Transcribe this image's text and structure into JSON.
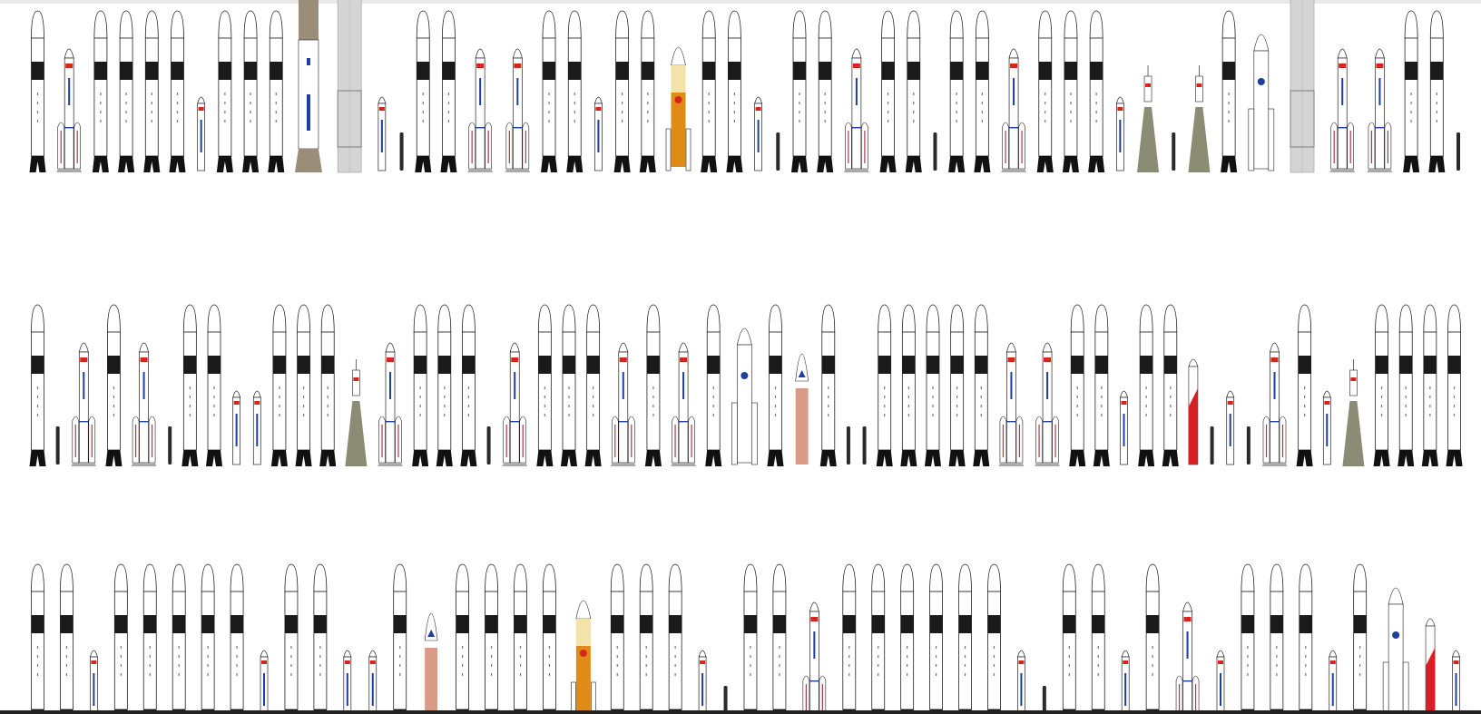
{
  "colors": {
    "background": "#ffffff",
    "rocket_body": "#ffffff",
    "rocket_outline": "#222222",
    "interstage": "#1a1a1a",
    "falcon_legs": "#111111",
    "china_flag": "#d8251c",
    "blue_stripe": "#1f3f9e",
    "booster_stripe": "#b2364a",
    "starship_steel": "#d4d4d4",
    "starship_dark": "#7d7d7d",
    "new_glenn_tan": "#9a8e78",
    "h3_orange": "#e08a18",
    "h3_cream": "#f4e3a8",
    "soyuz_olive": "#8c8c74",
    "vulcan_tan": "#d99a86",
    "zhuque_red": "#d81f26",
    "bottom_bar": "#222222"
  },
  "rows": [
    {
      "items": [
        {
          "type": "falcon9"
        },
        {
          "type": "longmarch"
        },
        {
          "type": "falcon9"
        },
        {
          "type": "falcon9"
        },
        {
          "type": "falcon9"
        },
        {
          "type": "falcon9"
        },
        {
          "type": "small"
        },
        {
          "type": "falcon9"
        },
        {
          "type": "falcon9"
        },
        {
          "type": "falcon9"
        },
        {
          "type": "newglenn"
        },
        {
          "type": "starship"
        },
        {
          "type": "small"
        },
        {
          "type": "tiny"
        },
        {
          "type": "falcon9"
        },
        {
          "type": "falcon9"
        },
        {
          "type": "longmarch"
        },
        {
          "type": "longmarch"
        },
        {
          "type": "falcon9"
        },
        {
          "type": "falcon9"
        },
        {
          "type": "small"
        },
        {
          "type": "falcon9"
        },
        {
          "type": "falcon9"
        },
        {
          "type": "h3"
        },
        {
          "type": "falcon9"
        },
        {
          "type": "falcon9"
        },
        {
          "type": "small"
        },
        {
          "type": "tiny"
        },
        {
          "type": "falcon9"
        },
        {
          "type": "falcon9"
        },
        {
          "type": "longmarch"
        },
        {
          "type": "falcon9"
        },
        {
          "type": "falcon9"
        },
        {
          "type": "tiny"
        },
        {
          "type": "falcon9"
        },
        {
          "type": "falcon9"
        },
        {
          "type": "longmarch"
        },
        {
          "type": "falcon9"
        },
        {
          "type": "falcon9"
        },
        {
          "type": "falcon9"
        },
        {
          "type": "small"
        },
        {
          "type": "soyuz"
        },
        {
          "type": "tiny"
        },
        {
          "type": "soyuz"
        },
        {
          "type": "falcon9"
        },
        {
          "type": "ariane"
        },
        {
          "type": "starship"
        },
        {
          "type": "longmarch"
        },
        {
          "type": "longmarch"
        },
        {
          "type": "falcon9"
        },
        {
          "type": "falcon9"
        },
        {
          "type": "tiny"
        }
      ]
    },
    {
      "items": [
        {
          "type": "falcon9"
        },
        {
          "type": "tiny"
        },
        {
          "type": "longmarch"
        },
        {
          "type": "falcon9"
        },
        {
          "type": "longmarch"
        },
        {
          "type": "tiny"
        },
        {
          "type": "falcon9"
        },
        {
          "type": "falcon9"
        },
        {
          "type": "small"
        },
        {
          "type": "small"
        },
        {
          "type": "falcon9"
        },
        {
          "type": "falcon9"
        },
        {
          "type": "falcon9"
        },
        {
          "type": "soyuz"
        },
        {
          "type": "longmarch"
        },
        {
          "type": "falcon9"
        },
        {
          "type": "falcon9"
        },
        {
          "type": "falcon9"
        },
        {
          "type": "tiny"
        },
        {
          "type": "longmarch"
        },
        {
          "type": "falcon9"
        },
        {
          "type": "falcon9"
        },
        {
          "type": "falcon9"
        },
        {
          "type": "longmarch"
        },
        {
          "type": "falcon9"
        },
        {
          "type": "longmarch"
        },
        {
          "type": "falcon9"
        },
        {
          "type": "ariane"
        },
        {
          "type": "falcon9"
        },
        {
          "type": "vulcan"
        },
        {
          "type": "falcon9"
        },
        {
          "type": "tiny"
        },
        {
          "type": "tiny"
        },
        {
          "type": "falcon9"
        },
        {
          "type": "falcon9"
        },
        {
          "type": "falcon9"
        },
        {
          "type": "falcon9"
        },
        {
          "type": "falcon9"
        },
        {
          "type": "longmarch"
        },
        {
          "type": "longmarch"
        },
        {
          "type": "falcon9"
        },
        {
          "type": "falcon9"
        },
        {
          "type": "small"
        },
        {
          "type": "falcon9"
        },
        {
          "type": "falcon9"
        },
        {
          "type": "zhuque"
        },
        {
          "type": "tiny"
        },
        {
          "type": "small"
        },
        {
          "type": "tiny"
        },
        {
          "type": "longmarch"
        },
        {
          "type": "falcon9"
        },
        {
          "type": "small"
        },
        {
          "type": "soyuz"
        },
        {
          "type": "falcon9"
        },
        {
          "type": "falcon9"
        },
        {
          "type": "falcon9"
        },
        {
          "type": "falcon9"
        }
      ]
    },
    {
      "items": [
        {
          "type": "falcon9"
        },
        {
          "type": "falcon9"
        },
        {
          "type": "small"
        },
        {
          "type": "falcon9"
        },
        {
          "type": "falcon9"
        },
        {
          "type": "falcon9"
        },
        {
          "type": "falcon9"
        },
        {
          "type": "falcon9"
        },
        {
          "type": "small"
        },
        {
          "type": "falcon9"
        },
        {
          "type": "falcon9"
        },
        {
          "type": "small"
        },
        {
          "type": "small"
        },
        {
          "type": "falcon9"
        },
        {
          "type": "vulcan"
        },
        {
          "type": "falcon9"
        },
        {
          "type": "falcon9"
        },
        {
          "type": "falcon9"
        },
        {
          "type": "falcon9"
        },
        {
          "type": "h3"
        },
        {
          "type": "falcon9"
        },
        {
          "type": "falcon9"
        },
        {
          "type": "falcon9"
        },
        {
          "type": "small"
        },
        {
          "type": "tiny"
        },
        {
          "type": "falcon9"
        },
        {
          "type": "falcon9"
        },
        {
          "type": "longmarch"
        },
        {
          "type": "falcon9"
        },
        {
          "type": "falcon9"
        },
        {
          "type": "falcon9"
        },
        {
          "type": "falcon9"
        },
        {
          "type": "falcon9"
        },
        {
          "type": "falcon9"
        },
        {
          "type": "small"
        },
        {
          "type": "tiny"
        },
        {
          "type": "falcon9"
        },
        {
          "type": "falcon9"
        },
        {
          "type": "small"
        },
        {
          "type": "falcon9"
        },
        {
          "type": "longmarch"
        },
        {
          "type": "small"
        },
        {
          "type": "falcon9"
        },
        {
          "type": "falcon9"
        },
        {
          "type": "falcon9"
        },
        {
          "type": "small"
        },
        {
          "type": "falcon9"
        },
        {
          "type": "ariane"
        },
        {
          "type": "zhuque"
        },
        {
          "type": "small"
        }
      ]
    }
  ]
}
